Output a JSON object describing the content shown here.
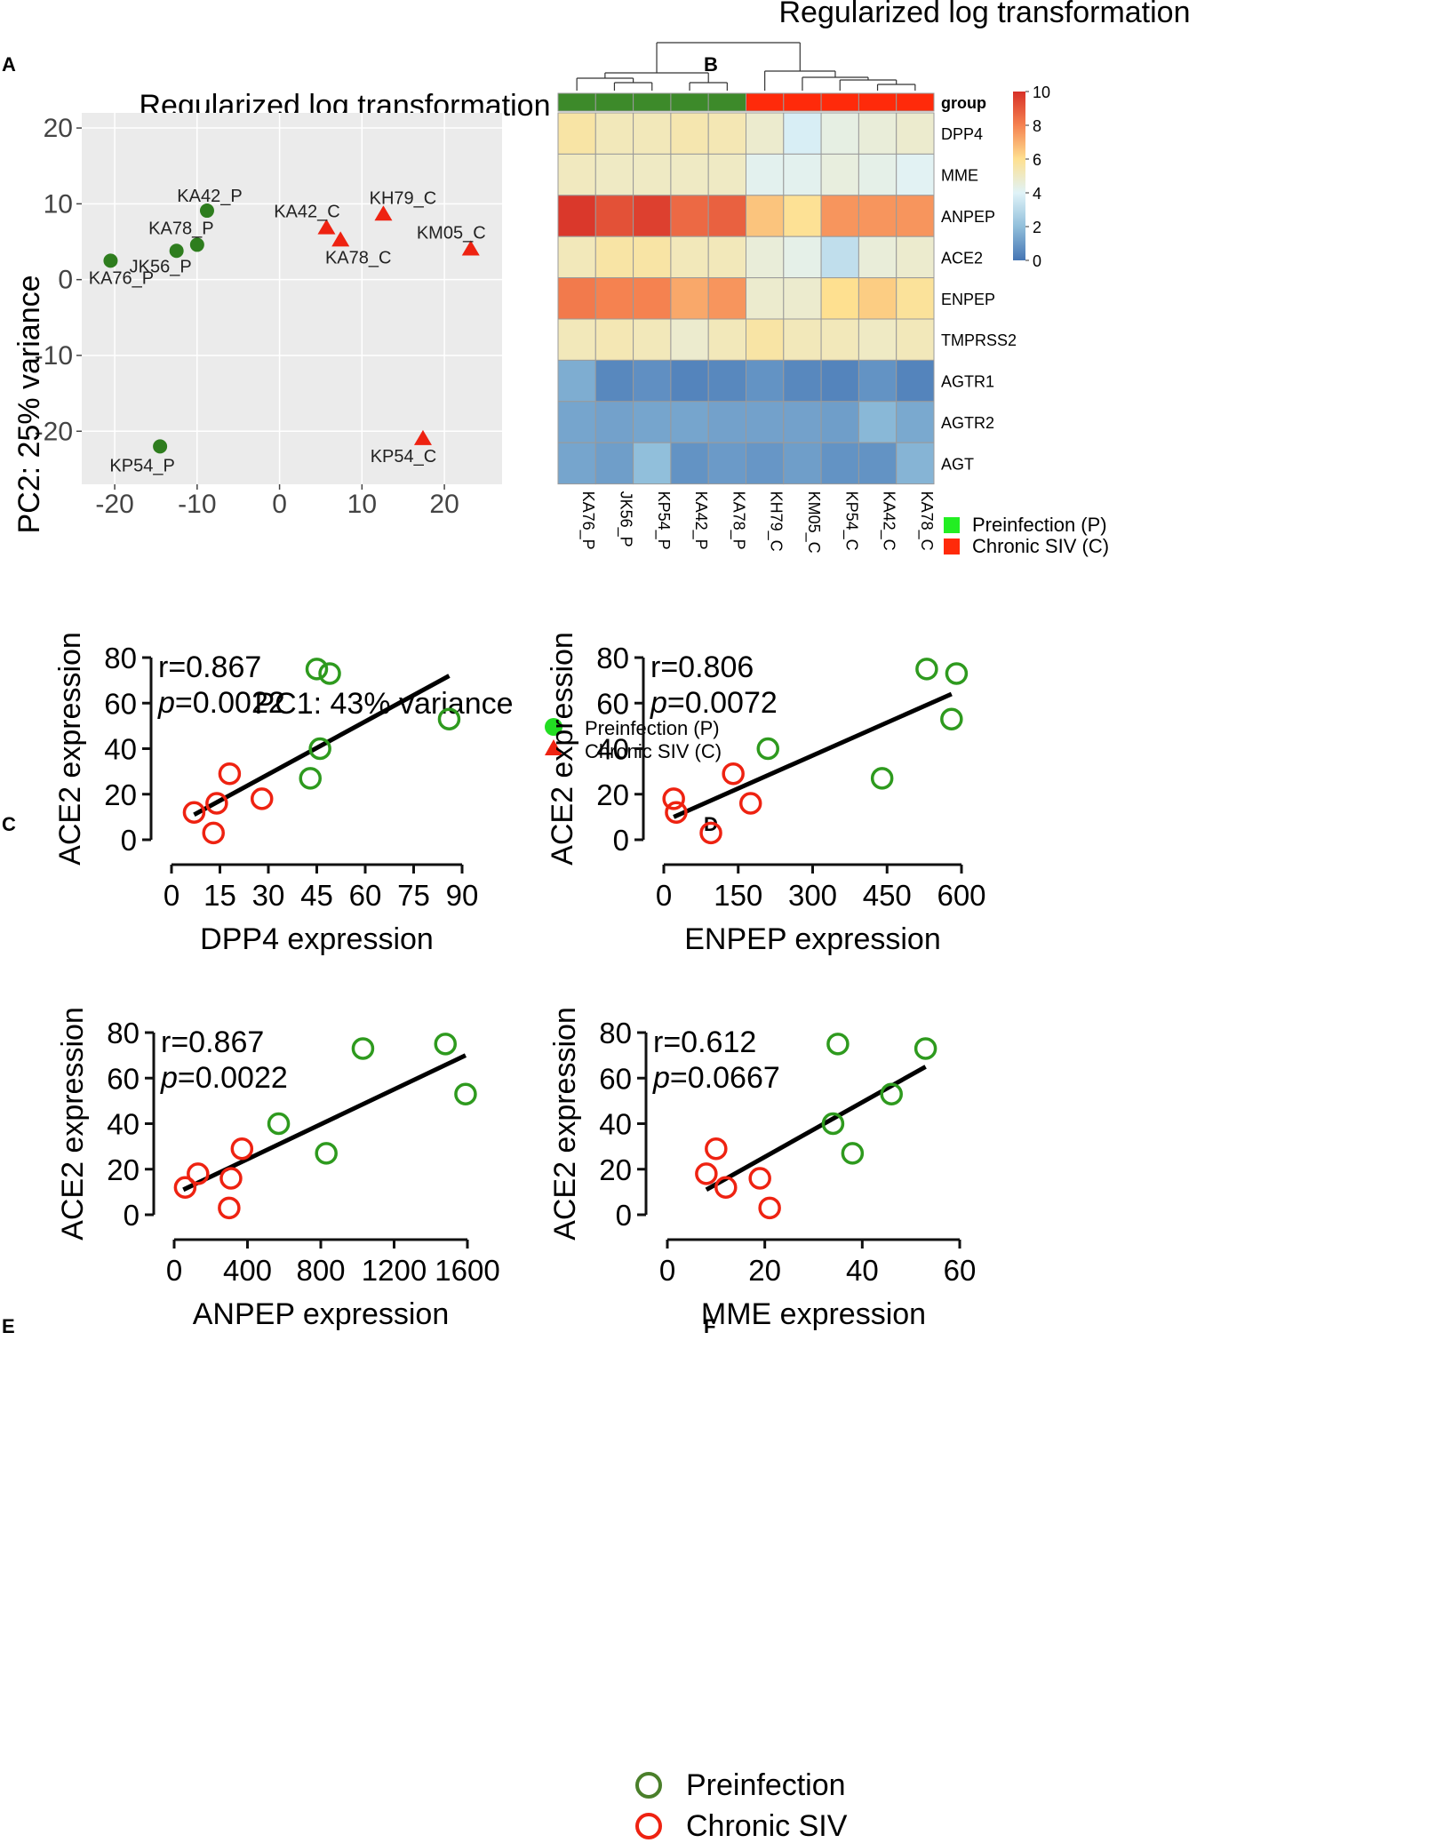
{
  "chart_data": [
    {
      "panel": "A",
      "type": "scatter",
      "title": "Regularized log transformation",
      "xlabel": "PC1: 43% variance",
      "ylabel": "PC2: 25% variance",
      "xlim": [
        -24,
        27
      ],
      "ylim": [
        -27,
        22
      ],
      "xticks": [
        -20,
        -10,
        0,
        10,
        20
      ],
      "yticks": [
        20,
        10,
        0,
        -10,
        -20
      ],
      "xtick_labels": [
        "-20",
        "-10",
        "0",
        "10",
        "20"
      ],
      "ytick_labels": [
        "20",
        "10",
        "0",
        "-10",
        "-20"
      ],
      "background": "#ebebeb",
      "grid": true,
      "series": [
        {
          "name": "Preinfection (P)",
          "marker": "circle",
          "color": "#2e7d1e",
          "legend_color": "#22dd22",
          "points": [
            {
              "label": "KA42_P",
              "x": -8.8,
              "y": 9.1
            },
            {
              "label": "KA78_P",
              "x": -10.0,
              "y": 4.6
            },
            {
              "label": "JK56_P",
              "x": -12.5,
              "y": 3.8
            },
            {
              "label": "KA76_P",
              "x": -20.5,
              "y": 2.5
            },
            {
              "label": "KP54_P",
              "x": -14.5,
              "y": -22.0
            }
          ]
        },
        {
          "name": "Chronic SIV (C)",
          "marker": "triangle",
          "color": "#ee2211",
          "legend_color": "#ee2211",
          "points": [
            {
              "label": "KH79_C",
              "x": 12.6,
              "y": 8.6
            },
            {
              "label": "KA42_C",
              "x": 5.7,
              "y": 6.8
            },
            {
              "label": "KA78_C",
              "x": 7.4,
              "y": 5.2
            },
            {
              "label": "KM05_C",
              "x": 23.2,
              "y": 4.0
            },
            {
              "label": "KP54_C",
              "x": 17.4,
              "y": -21.0
            }
          ]
        }
      ]
    },
    {
      "panel": "B",
      "type": "heatmap",
      "title": "Regularized log transformation",
      "group_label": "group",
      "columns": [
        "KA76_P",
        "JK56_P",
        "KP54_P",
        "KA42_P",
        "KA78_P",
        "KH79_C",
        "KM05_C",
        "KP54_C",
        "KA42_C",
        "KA78_C"
      ],
      "column_groups": [
        "P",
        "P",
        "P",
        "P",
        "P",
        "C",
        "C",
        "C",
        "C",
        "C"
      ],
      "group_colors": {
        "P": "#3d8a2a",
        "C": "#ff2a0a"
      },
      "rows": [
        "DPP4",
        "MME",
        "ANPEP",
        "ACE2",
        "ENPEP",
        "TMPRSS2",
        "AGTR1",
        "AGTR2",
        "AGT"
      ],
      "values": [
        [
          5.6,
          5.2,
          5.2,
          5.4,
          5.3,
          4.8,
          3.8,
          4.4,
          4.6,
          4.8
        ],
        [
          5.1,
          5.0,
          5.0,
          5.0,
          5.0,
          4.2,
          4.2,
          4.5,
          4.3,
          4.1
        ],
        [
          9.8,
          9.2,
          9.6,
          8.6,
          8.8,
          6.6,
          5.9,
          7.6,
          7.6,
          7.6
        ],
        [
          5.2,
          5.6,
          5.6,
          5.2,
          5.2,
          4.6,
          4.3,
          3.2,
          4.6,
          4.8
        ],
        [
          8.2,
          8.0,
          8.0,
          7.2,
          7.6,
          4.8,
          4.8,
          6.0,
          6.4,
          5.8
        ],
        [
          5.2,
          5.3,
          5.2,
          4.8,
          5.2,
          5.6,
          5.2,
          5.2,
          5.0,
          5.2
        ],
        [
          1.5,
          0.5,
          0.7,
          0.4,
          0.5,
          0.8,
          0.5,
          0.4,
          0.8,
          0.4
        ],
        [
          1.3,
          1.2,
          1.3,
          1.3,
          1.2,
          1.2,
          1.2,
          1.1,
          1.8,
          1.4
        ],
        [
          1.3,
          1.1,
          2.0,
          0.8,
          1.0,
          0.9,
          1.1,
          0.8,
          0.8,
          1.7
        ]
      ],
      "colorbar": {
        "min": 0,
        "max": 10,
        "ticks": [
          10,
          8,
          6,
          4,
          2,
          0
        ],
        "tick_labels": [
          "10",
          "8",
          "6",
          "4",
          "2",
          "0"
        ]
      },
      "legend": [
        {
          "label": "Preinfection (P)",
          "color": "#22ee22"
        },
        {
          "label": "Chronic SIV (C)",
          "color": "#ff2a0a"
        }
      ]
    },
    {
      "panel": "C",
      "type": "scatter",
      "xlabel": "DPP4 expression",
      "ylabel": "ACE2 expression",
      "annotation_r": "r=0.867",
      "annotation_p_letter": "p",
      "annotation_p_value": "=0.0022",
      "xlim": [
        0,
        90
      ],
      "ylim": [
        0,
        80
      ],
      "xticks": [
        0,
        15,
        30,
        45,
        60,
        75,
        90
      ],
      "xtick_labels": [
        "0",
        "15",
        "30",
        "45",
        "60",
        "75",
        "90"
      ],
      "yticks": [
        0,
        20,
        40,
        60,
        80
      ],
      "ytick_labels": [
        "0",
        "20",
        "40",
        "60",
        "80"
      ],
      "fit_line": {
        "x": [
          7,
          86
        ],
        "y": [
          11,
          72
        ]
      },
      "series": [
        {
          "name": "Preinfection",
          "color": "#2e9a1e",
          "points": [
            [
              45,
              75
            ],
            [
              49,
              73
            ],
            [
              46,
              40
            ],
            [
              43,
              27
            ],
            [
              86,
              53
            ]
          ]
        },
        {
          "name": "Chronic SIV",
          "color": "#ee2211",
          "points": [
            [
              18,
              29
            ],
            [
              7,
              12
            ],
            [
              14,
              16
            ],
            [
              13,
              3
            ],
            [
              28,
              18
            ]
          ]
        }
      ]
    },
    {
      "panel": "D",
      "type": "scatter",
      "xlabel": "ENPEP expression",
      "ylabel": "ACE2 expression",
      "annotation_r": "r=0.806",
      "annotation_p_letter": "p",
      "annotation_p_value": "=0.0072",
      "xlim": [
        0,
        600
      ],
      "ylim": [
        0,
        80
      ],
      "xticks": [
        0,
        150,
        300,
        450,
        600
      ],
      "xtick_labels": [
        "0",
        "150",
        "300",
        "450",
        "600"
      ],
      "yticks": [
        0,
        20,
        40,
        60,
        80
      ],
      "ytick_labels": [
        "0",
        "20",
        "40",
        "60",
        "80"
      ],
      "fit_line": {
        "x": [
          20,
          580
        ],
        "y": [
          10,
          64
        ]
      },
      "series": [
        {
          "name": "Preinfection",
          "color": "#2e9a1e",
          "points": [
            [
              530,
              75
            ],
            [
              590,
              73
            ],
            [
              580,
              53
            ],
            [
              210,
              40
            ],
            [
              440,
              27
            ]
          ]
        },
        {
          "name": "Chronic SIV",
          "color": "#ee2211",
          "points": [
            [
              140,
              29
            ],
            [
              20,
              18
            ],
            [
              25,
              12
            ],
            [
              175,
              16
            ],
            [
              95,
              3
            ]
          ]
        }
      ]
    },
    {
      "panel": "E",
      "type": "scatter",
      "xlabel": "ANPEP expression",
      "ylabel": "ACE2 expression",
      "annotation_r": "r=0.867",
      "annotation_p_letter": "p",
      "annotation_p_value": "=0.0022",
      "xlim": [
        0,
        1600
      ],
      "ylim": [
        0,
        80
      ],
      "xticks": [
        0,
        400,
        800,
        1200,
        1600
      ],
      "xtick_labels": [
        "0",
        "400",
        "800",
        "1200",
        "1600"
      ],
      "yticks": [
        0,
        20,
        40,
        60,
        80
      ],
      "ytick_labels": [
        "0",
        "20",
        "40",
        "60",
        "80"
      ],
      "fit_line": {
        "x": [
          50,
          1590
        ],
        "y": [
          11,
          70
        ]
      },
      "series": [
        {
          "name": "Preinfection",
          "color": "#2e9a1e",
          "points": [
            [
              1030,
              73
            ],
            [
              1480,
              75
            ],
            [
              1590,
              53
            ],
            [
              570,
              40
            ],
            [
              830,
              27
            ]
          ]
        },
        {
          "name": "Chronic SIV",
          "color": "#ee2211",
          "points": [
            [
              370,
              29
            ],
            [
              130,
              18
            ],
            [
              60,
              12
            ],
            [
              310,
              16
            ],
            [
              300,
              3
            ]
          ]
        }
      ]
    },
    {
      "panel": "F",
      "type": "scatter",
      "xlabel": "MME expression",
      "ylabel": "ACE2 expression",
      "annotation_r": "r=0.612",
      "annotation_p_letter": "p",
      "annotation_p_value": "=0.0667",
      "xlim": [
        0,
        60
      ],
      "ylim": [
        0,
        80
      ],
      "xticks": [
        0,
        20,
        40,
        60
      ],
      "xtick_labels": [
        "0",
        "20",
        "40",
        "60"
      ],
      "yticks": [
        0,
        20,
        40,
        60,
        80
      ],
      "ytick_labels": [
        "0",
        "20",
        "40",
        "60",
        "80"
      ],
      "fit_line": {
        "x": [
          8,
          53
        ],
        "y": [
          11,
          65
        ]
      },
      "series": [
        {
          "name": "Preinfection",
          "color": "#2e9a1e",
          "points": [
            [
              35,
              75
            ],
            [
              53,
              73
            ],
            [
              46,
              53
            ],
            [
              34,
              40
            ],
            [
              38,
              27
            ]
          ]
        },
        {
          "name": "Chronic SIV",
          "color": "#ee2211",
          "points": [
            [
              10,
              29
            ],
            [
              8,
              18
            ],
            [
              12,
              12
            ],
            [
              19,
              16
            ],
            [
              21,
              3
            ]
          ]
        }
      ]
    }
  ],
  "panel_letters": [
    "A",
    "B",
    "C",
    "D",
    "E",
    "F"
  ],
  "bottom_legend": [
    {
      "label": "Preinfection",
      "color": "#4a7f2a"
    },
    {
      "label": "Chronic SIV",
      "color": "#ee2211"
    }
  ]
}
